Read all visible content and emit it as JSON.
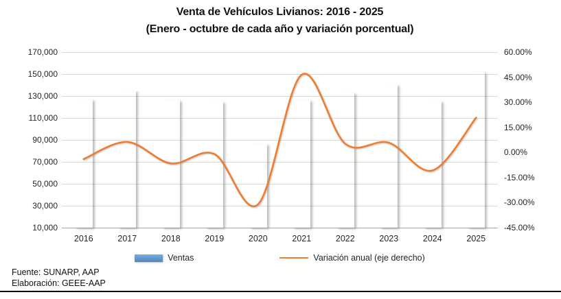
{
  "title": "Venta de Vehículos Livianos: 2016 - 2025",
  "subtitle": "(Enero - octubre de cada año y variación porcentual)",
  "footer": {
    "source": "Fuente: SUNARP, AAP",
    "elaboration": "Elaboración: GEEE-AAP"
  },
  "legend": [
    {
      "label": "Ventas",
      "type": "bar",
      "color": "#5B9BD5"
    },
    {
      "label": "Variación anual (eje derecho)",
      "type": "line",
      "color": "#ED7D31"
    }
  ],
  "colors": {
    "bar_top": "#79ACDF",
    "bar_bottom": "#4E86C0",
    "line": "#ED7D31",
    "gridline": "#D9D9D9",
    "axis_line": "#A6A6A6",
    "text": "#262626"
  },
  "chart_data": {
    "type": "bar",
    "combo": "bar+line",
    "categories": [
      "2016",
      "2017",
      "2018",
      "2019",
      "2020",
      "2021",
      "2022",
      "2023",
      "2024",
      "2025"
    ],
    "series": [
      {
        "name": "Ventas",
        "type": "bar",
        "axis": "left",
        "values": [
          127000,
          135200,
          126300,
          125000,
          86300,
          126400,
          133000,
          140700,
          125500,
          151600
        ]
      },
      {
        "name": "Variación anual (eje derecho)",
        "type": "line",
        "axis": "right",
        "values": [
          -4.0,
          6.3,
          -6.6,
          -1.0,
          -31.0,
          46.5,
          5.2,
          5.8,
          -10.8,
          20.8
        ]
      }
    ],
    "left_axis": {
      "min": 10000,
      "max": 170000,
      "step": 20000,
      "tick_labels": [
        "170,000",
        "150,000",
        "130,000",
        "110,000",
        "90,000",
        "70,000",
        "50,000",
        "30,000",
        "10,000"
      ]
    },
    "right_axis": {
      "min": -45,
      "max": 60,
      "step": 15,
      "tick_labels": [
        "60.00%",
        "45.00%",
        "30.00%",
        "15.00%",
        "0.00%",
        "-15.00%",
        "-30.00%",
        "-45.00%"
      ]
    },
    "grid": true,
    "legend_position": "bottom",
    "line_smoothed": true
  }
}
